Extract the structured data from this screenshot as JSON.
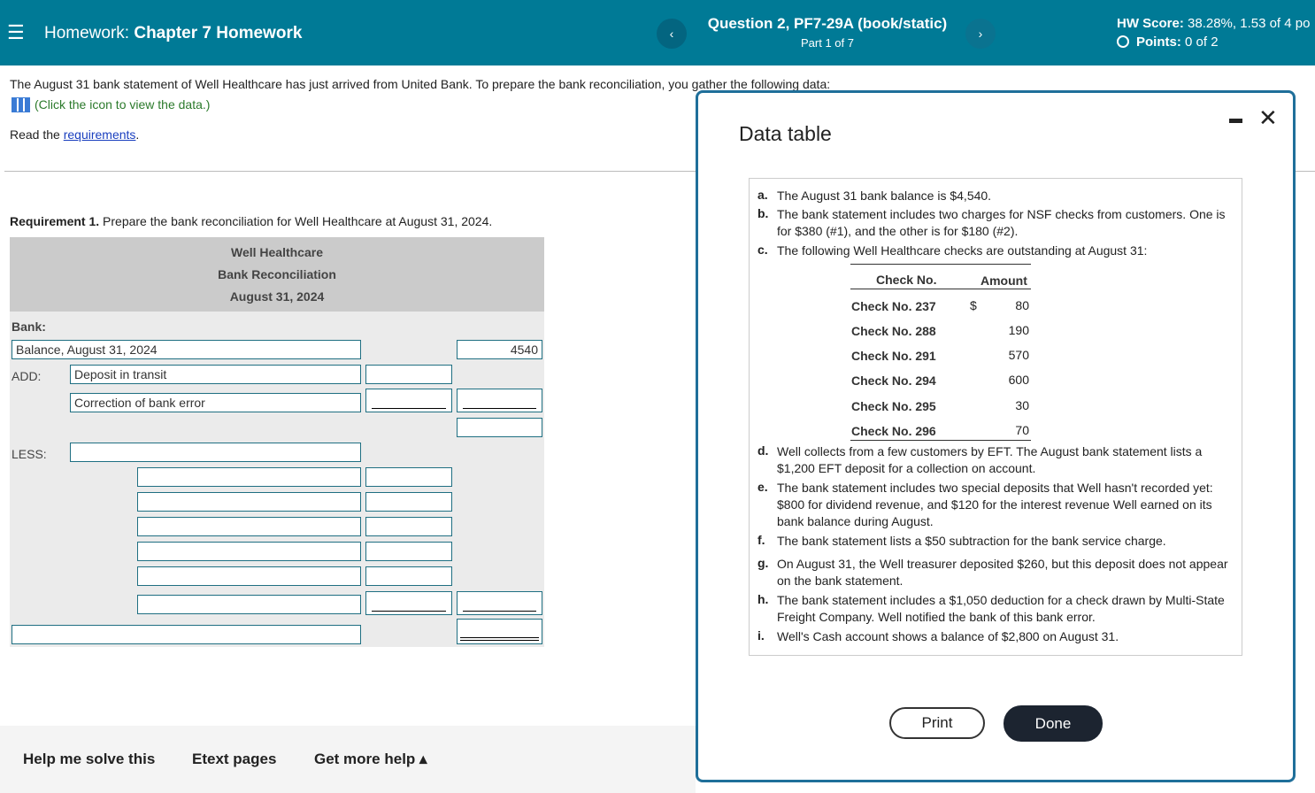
{
  "header": {
    "menu_icon": "hamburger-icon",
    "homework_label": "Homework:",
    "homework_title": "Chapter 7 Homework",
    "question": "Question 2, PF7-29A (book/static)",
    "part": "Part 1 of 7",
    "hw_score_label": "HW Score:",
    "hw_score_value": "38.28%, 1.53 of 4 po",
    "points_label": "Points:",
    "points_value": "0 of 2"
  },
  "intro": {
    "text": "The August 31 bank statement of Well Healthcare has just arrived from United Bank. To prepare the bank reconciliation, you gather the following data:",
    "icon_link": "(Click the icon to view the data.)",
    "read_prefix": "Read the",
    "requirements_link": "requirements",
    "read_suffix": "."
  },
  "requirement": {
    "label": "Requirement 1.",
    "text": "Prepare the bank reconciliation for Well Healthcare at August 31, 2024."
  },
  "recon": {
    "company": "Well Healthcare",
    "title": "Bank Reconciliation",
    "date": "August 31, 2024",
    "bank_label": "Bank:",
    "balance_label": "Balance, August 31, 2024",
    "balance_value": "4540",
    "add_label": "ADD:",
    "add_items": [
      "Deposit in transit",
      "Correction of bank error"
    ],
    "less_label": "LESS:"
  },
  "footer": {
    "help": "Help me solve this",
    "etext": "Etext pages",
    "more_help": "Get more help ▴"
  },
  "modal": {
    "title": "Data table",
    "minimize_icon": "minimize-icon",
    "close_icon": "close-icon",
    "print": "Print",
    "done": "Done",
    "items": [
      {
        "letter": "a.",
        "text": "The August 31 bank balance is $4,540."
      },
      {
        "letter": "b.",
        "text": "The bank statement includes two charges for NSF checks from customers. One is for $380 (#1), and the other is for $180 (#2)."
      },
      {
        "letter": "c.",
        "text": "The following Well Healthcare checks are outstanding at August 31:"
      },
      {
        "letter": "d.",
        "text": "Well collects from a few customers by EFT. The August bank statement lists a $1,200 EFT deposit for a collection on account."
      },
      {
        "letter": "e.",
        "text": "The bank statement includes two special deposits that Well hasn't recorded yet: $800 for dividend revenue, and $120 for the interest revenue Well earned on its bank balance during August."
      },
      {
        "letter": "f.",
        "text": "The bank statement lists a $50 subtraction for the bank service charge."
      },
      {
        "letter": "g.",
        "text": "On August 31, the Well treasurer deposited $260, but this deposit does not appear on the bank statement."
      },
      {
        "letter": "h.",
        "text": "The bank statement includes a $1,050 deduction for a check drawn by Multi-State Freight Company. Well notified the bank of this bank error."
      },
      {
        "letter": "i.",
        "text": "Well's Cash account shows a balance of $2,800 on August 31."
      }
    ],
    "checks": {
      "col1": "Check No.",
      "col2": "Amount",
      "currency": "$",
      "rows": [
        [
          "Check No. 237",
          "80"
        ],
        [
          "Check No. 288",
          "190"
        ],
        [
          "Check No. 291",
          "570"
        ],
        [
          "Check No. 294",
          "600"
        ],
        [
          "Check No. 295",
          "30"
        ],
        [
          "Check No. 296",
          "70"
        ]
      ]
    }
  }
}
